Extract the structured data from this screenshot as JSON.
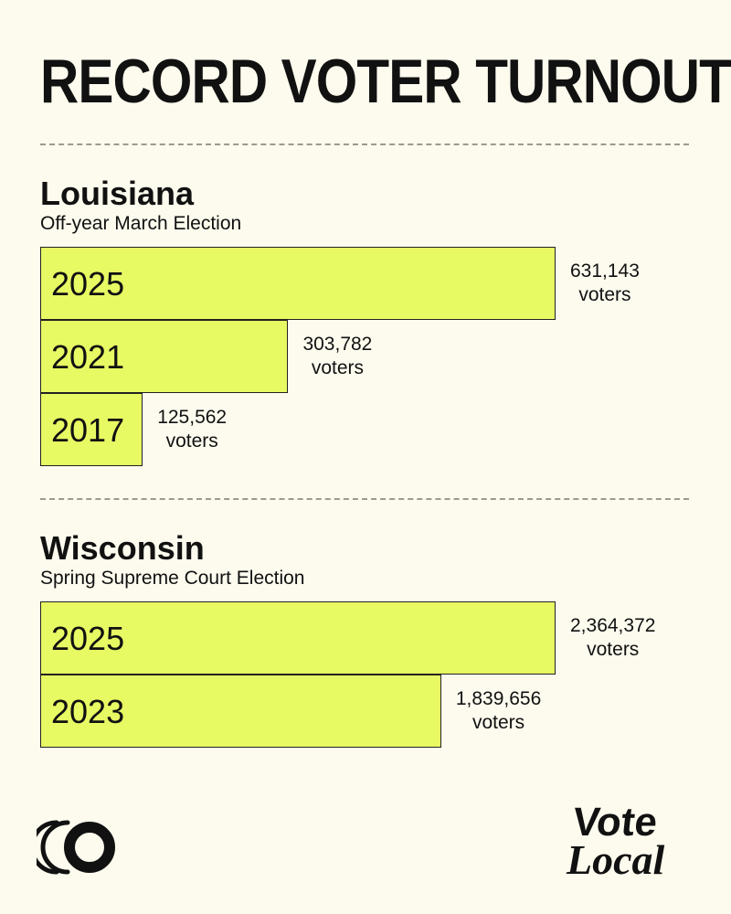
{
  "title": "RECORD VOTER TURNOUT",
  "brand": {
    "left_icon": "signal-circle-icon",
    "right_logo_text": "Vote Local"
  },
  "colors": {
    "background": "#fdfbee",
    "bar": "#e8fa63",
    "text": "#111111"
  },
  "chart_data": [
    {
      "type": "bar",
      "orientation": "horizontal",
      "title": "Louisiana",
      "subtitle": "Off-year March Election",
      "categories": [
        "2025",
        "2021",
        "2017"
      ],
      "values": [
        631143,
        303782,
        125562
      ],
      "value_labels": [
        "631,143",
        "303,782",
        "125,562"
      ],
      "unit_label": "voters"
    },
    {
      "type": "bar",
      "orientation": "horizontal",
      "title": "Wisconsin",
      "subtitle": "Spring Supreme Court Election",
      "categories": [
        "2025",
        "2023"
      ],
      "values": [
        2364372,
        1839656
      ],
      "value_labels": [
        "2,364,372",
        "1,839,656"
      ],
      "unit_label": "voters"
    }
  ]
}
